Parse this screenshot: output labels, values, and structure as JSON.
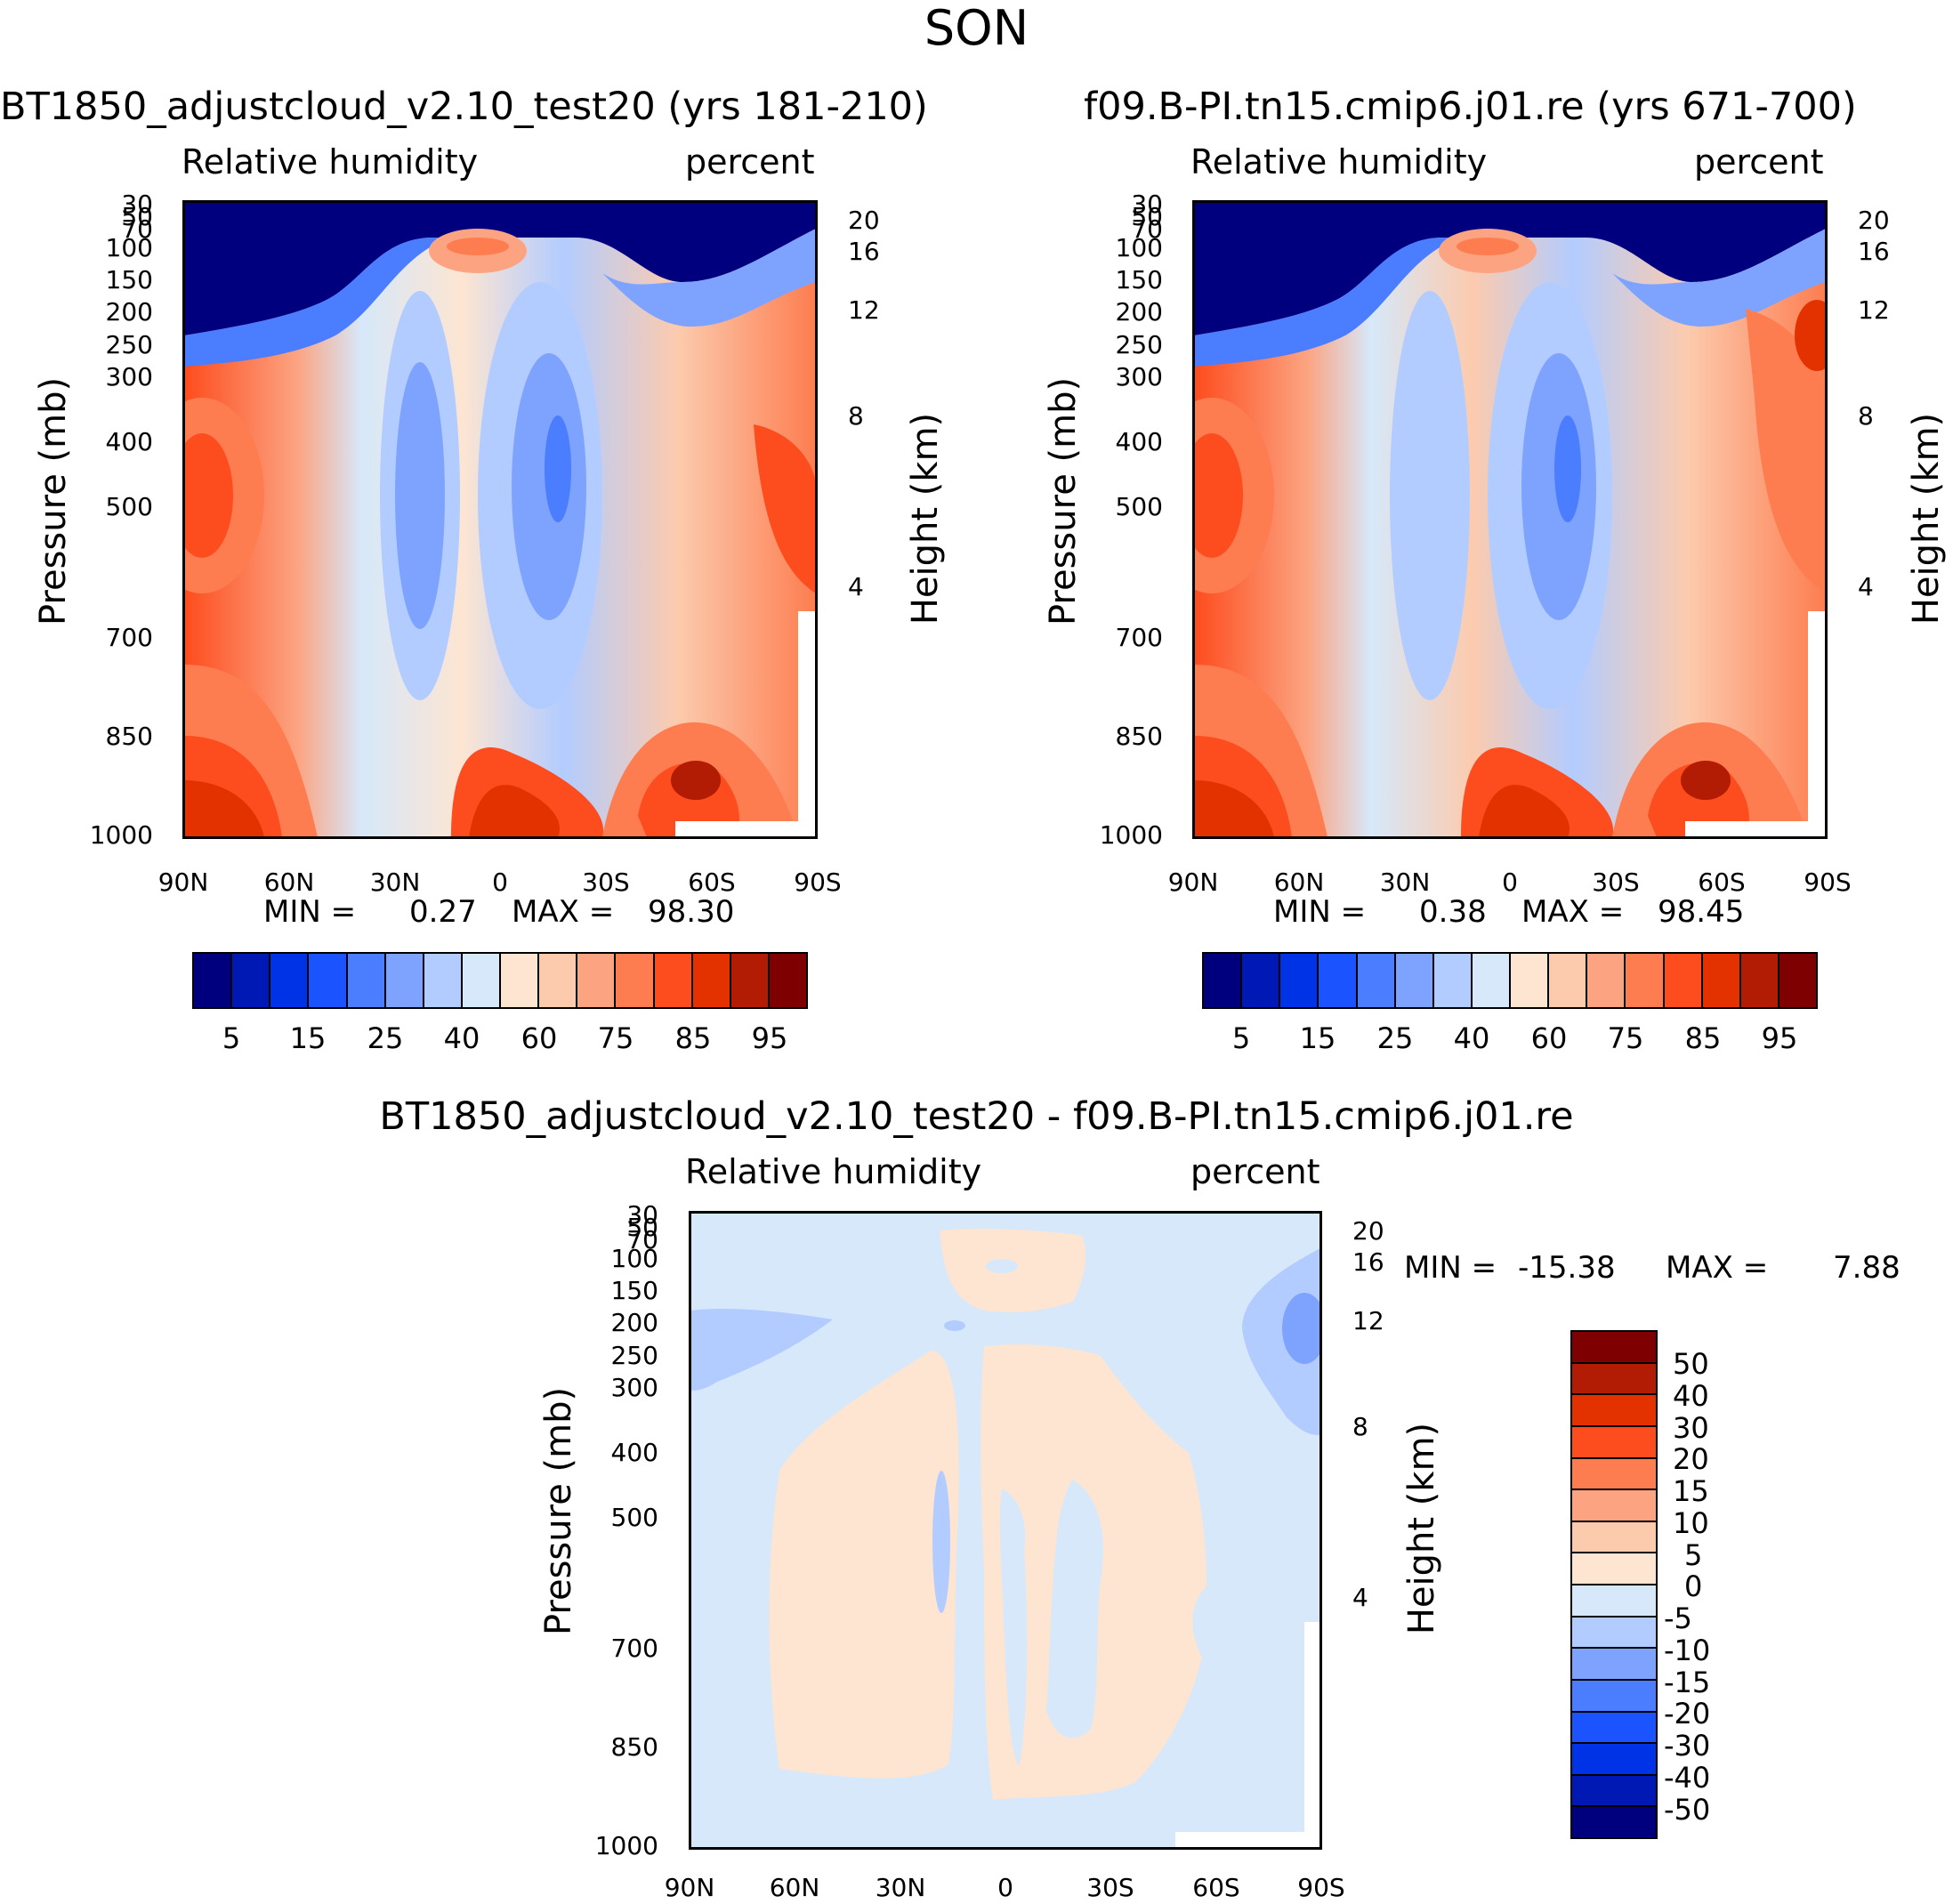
{
  "figure": {
    "title": "SON"
  },
  "chart_data": [
    {
      "type": "heatmap",
      "id": "panel1",
      "title": "BT1850_adjustcloud_v2.10_test20 (yrs 181-210)",
      "left_label": "Relative humidity",
      "right_label": "percent",
      "ylabel": "Pressure (mb)",
      "ylabel_right": "Height (km)",
      "x_ticks": [
        "90N",
        "60N",
        "30N",
        "0",
        "30S",
        "60S",
        "90S"
      ],
      "y_ticks": [
        "30",
        "50",
        "70",
        "100",
        "150",
        "200",
        "250",
        "300",
        "400",
        "500",
        "700",
        "850",
        "1000"
      ],
      "height_ticks": [
        "20",
        "16",
        "12",
        "8",
        "4"
      ],
      "min_label": "MIN =",
      "min": "0.27",
      "max_label": "MAX =",
      "max": "98.30",
      "colorbar_labels": [
        "5",
        "15",
        "25",
        "40",
        "60",
        "75",
        "85",
        "95"
      ]
    },
    {
      "type": "heatmap",
      "id": "panel2",
      "title": "f09.B-PI.tn15.cmip6.j01.re (yrs 671-700)",
      "left_label": "Relative humidity",
      "right_label": "percent",
      "ylabel": "Pressure (mb)",
      "ylabel_right": "Height (km)",
      "x_ticks": [
        "90N",
        "60N",
        "30N",
        "0",
        "30S",
        "60S",
        "90S"
      ],
      "y_ticks": [
        "30",
        "50",
        "70",
        "100",
        "150",
        "200",
        "250",
        "300",
        "400",
        "500",
        "700",
        "850",
        "1000"
      ],
      "height_ticks": [
        "20",
        "16",
        "12",
        "8",
        "4"
      ],
      "min_label": "MIN =",
      "min": "0.38",
      "max_label": "MAX =",
      "max": "98.45",
      "colorbar_labels": [
        "5",
        "15",
        "25",
        "40",
        "60",
        "75",
        "85",
        "95"
      ]
    },
    {
      "type": "heatmap",
      "id": "panel3",
      "title": "BT1850_adjustcloud_v2.10_test20 - f09.B-PI.tn15.cmip6.j01.re",
      "left_label": "Relative humidity",
      "right_label": "percent",
      "ylabel": "Pressure (mb)",
      "ylabel_right": "Height (km)",
      "x_ticks": [
        "90N",
        "60N",
        "30N",
        "0",
        "30S",
        "60S",
        "90S"
      ],
      "y_ticks": [
        "30",
        "50",
        "70",
        "100",
        "150",
        "200",
        "250",
        "300",
        "400",
        "500",
        "700",
        "850",
        "1000"
      ],
      "height_ticks": [
        "20",
        "16",
        "12",
        "8",
        "4"
      ],
      "min_label": "MIN =",
      "min": "-15.38",
      "max_label": "MAX =",
      "max": "7.88",
      "colorbar_labels": [
        "50",
        "40",
        "30",
        "20",
        "15",
        "10",
        "5",
        "0",
        "-5",
        "-10",
        "-15",
        "-20",
        "-30",
        "-40",
        "-50"
      ]
    }
  ],
  "colors": {
    "sequential": [
      "#00007f",
      "#0019b4",
      "#0033e6",
      "#1a53ff",
      "#4a7dff",
      "#7ea3ff",
      "#b3ccff",
      "#d6e8fa",
      "#fde5d2",
      "#fccbae",
      "#fca482",
      "#fd7d50",
      "#fd4c1d",
      "#e33200",
      "#b21c05",
      "#7f0000"
    ],
    "diverging_top_to_bottom": [
      "#7f0000",
      "#b21c05",
      "#e33200",
      "#fd4c1d",
      "#fd7d50",
      "#fca482",
      "#fccbae",
      "#fde5d2",
      "#d6e8fa",
      "#b3ccff",
      "#7ea3ff",
      "#4a7dff",
      "#1a53ff",
      "#0033e6",
      "#0019b4",
      "#00007f"
    ]
  }
}
